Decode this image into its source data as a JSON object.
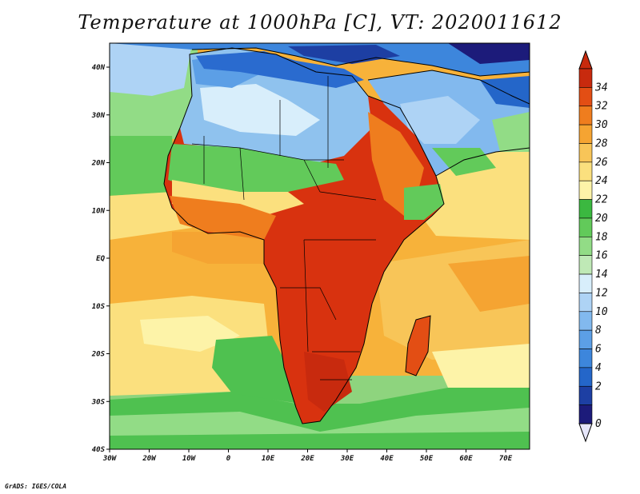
{
  "title": "Temperature at 1000hPa [C], VT: 2020011612",
  "credit": "GrADS: IGES/COLA",
  "lon_labels": [
    "30W",
    "20W",
    "10W",
    "0",
    "10E",
    "20E",
    "30E",
    "40E",
    "50E",
    "60E",
    "70E"
  ],
  "lat_labels": [
    "40N",
    "30N",
    "20N",
    "10N",
    "EQ",
    "10S",
    "20S",
    "30S",
    "40S"
  ],
  "colorbar": {
    "levels": [
      "0",
      "2",
      "4",
      "6",
      "8",
      "10",
      "12",
      "14",
      "16",
      "18",
      "20",
      "22",
      "24",
      "26",
      "28",
      "30",
      "32",
      "34"
    ],
    "colors": [
      "#1c1b7a",
      "#1d3fa3",
      "#2466c9",
      "#3d86dc",
      "#5c9fe6",
      "#82b9ee",
      "#aed3f5",
      "#d8eefb",
      "#bfe9b6",
      "#92dc86",
      "#62ca5a",
      "#3bb840",
      "#fdf3a8",
      "#fbe07e",
      "#f8c558",
      "#f5a432",
      "#ef7d1e",
      "#e34e14",
      "#c82a0e"
    ],
    "under_color": "#e6e6fa",
    "over_color": "#c82a0e"
  },
  "colors": {
    "sea_cool": "#4fc150",
    "sea_warm": "#f7b23a",
    "land_hot": "#d8320f",
    "desert": "#8fc2ee",
    "mediterranean": "#2a6bcf",
    "coast": "#000000"
  }
}
